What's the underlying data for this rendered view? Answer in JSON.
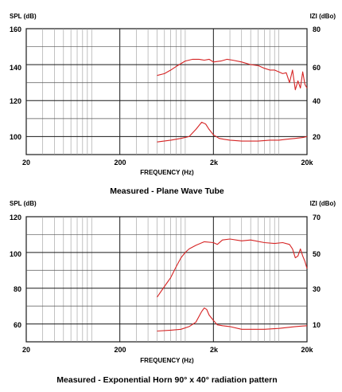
{
  "chart_data": [
    {
      "type": "line",
      "title": "Measured - Plane Wave Tube",
      "xlabel": "FREQUENCY (Hz)",
      "ylabel": "SPL (dB)",
      "y2label": "IZI (dBo)",
      "x_scale": "log",
      "xlim": [
        20,
        20000
      ],
      "ylim": [
        90,
        160
      ],
      "y2lim": [
        10,
        80
      ],
      "x_ticks": [
        "20",
        "200",
        "2k",
        "20k"
      ],
      "y_ticks": [
        "160",
        "140",
        "120",
        "100"
      ],
      "y2_ticks": [
        "80",
        "60",
        "40",
        "20"
      ],
      "grid": true,
      "line_color": "#d62424",
      "series": [
        {
          "axis": "left",
          "x": [
            500,
            600,
            700,
            800,
            1000,
            1200,
            1400,
            1600,
            1800,
            2000,
            2400,
            2800,
            3200,
            4000,
            5000,
            6000,
            7000,
            8000,
            9000,
            10000,
            11000,
            12000,
            13000,
            14000,
            15000,
            16000,
            17000,
            18000,
            19000,
            20000
          ],
          "y": [
            134,
            135,
            137,
            139,
            142,
            143,
            143,
            142.5,
            143,
            141.5,
            142,
            143,
            142.5,
            141.5,
            140,
            139.5,
            138,
            137,
            137,
            136,
            135,
            135.5,
            130,
            137,
            126,
            131,
            127,
            136,
            129,
            127
          ]
        },
        {
          "axis": "right",
          "x": [
            500,
            700,
            900,
            1100,
            1300,
            1500,
            1650,
            1800,
            2000,
            2300,
            2600,
            3000,
            4000,
            5000,
            6000,
            8000,
            10000,
            12000,
            15000,
            18000,
            20000
          ],
          "y": [
            17,
            18,
            19,
            20,
            24,
            28,
            27,
            24,
            21,
            19,
            18.5,
            18,
            17.5,
            17.5,
            17.5,
            18,
            18,
            18.5,
            19,
            19.5,
            20
          ]
        }
      ]
    },
    {
      "type": "line",
      "title": "Measured - Exponential Horn 90° x 40° radiation pattern",
      "xlabel": "FREQUENCY (Hz)",
      "ylabel": "SPL (dB)",
      "y2label": "IZI (dBo)",
      "x_scale": "log",
      "xlim": [
        20,
        20000
      ],
      "ylim": [
        50,
        120
      ],
      "y2lim": [
        0,
        70
      ],
      "x_ticks": [
        "20",
        "200",
        "2k",
        "20k"
      ],
      "y_ticks": [
        "120",
        "100",
        "80",
        "60"
      ],
      "y2_ticks": [
        "70",
        "50",
        "30",
        "10"
      ],
      "grid": true,
      "line_color": "#d62424",
      "series": [
        {
          "axis": "left",
          "x": [
            500,
            600,
            700,
            800,
            900,
            1000,
            1100,
            1300,
            1600,
            2000,
            2200,
            2500,
            3000,
            4000,
            5000,
            7000,
            9000,
            11000,
            13000,
            14000,
            15000,
            16000,
            17000,
            18000,
            19000,
            20000
          ],
          "y": [
            75,
            81,
            86,
            92,
            97,
            100,
            102,
            104,
            106,
            105.5,
            104.5,
            107,
            107.5,
            106.5,
            107,
            105.5,
            105,
            105.5,
            104.5,
            102,
            97,
            98,
            102,
            98,
            95,
            91
          ]
        },
        {
          "axis": "right",
          "x": [
            500,
            700,
            900,
            1100,
            1300,
            1500,
            1600,
            1700,
            1800,
            2000,
            2200,
            2500,
            3000,
            4000,
            5000,
            7000,
            10000,
            15000,
            20000
          ],
          "y": [
            6,
            6.5,
            7,
            8.5,
            11,
            17,
            19,
            18,
            15,
            12,
            9.5,
            9,
            8.5,
            7,
            7,
            7,
            7.5,
            8.5,
            9
          ]
        }
      ]
    }
  ]
}
